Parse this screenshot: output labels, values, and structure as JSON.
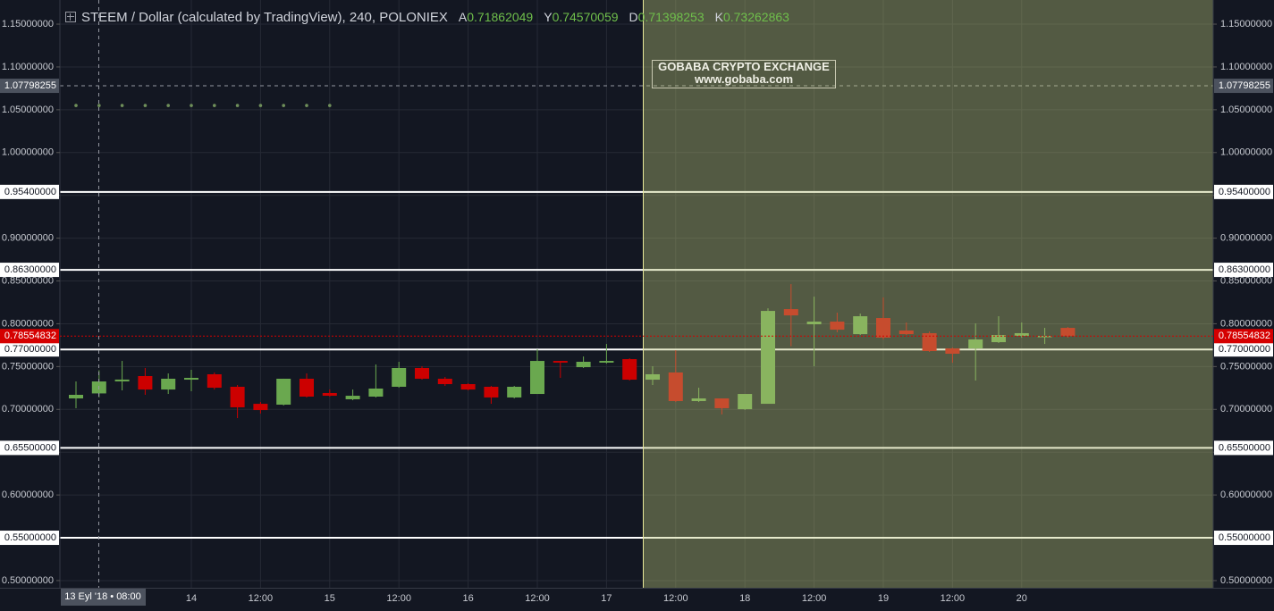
{
  "chart_data": {
    "type": "candlestick",
    "title": "STEEM / Dollar (calculated by TradingView), 240, POLONIEX",
    "ohlc_labels": [
      "A",
      "Y",
      "D",
      "K"
    ],
    "categories": [
      null,
      null,
      null,
      null,
      null,
      "14",
      null,
      null,
      "12:00",
      null,
      null,
      "15",
      null,
      null,
      "12:00",
      null,
      null,
      "16",
      null,
      null,
      "12:00",
      null,
      null,
      "17",
      null,
      null,
      "12:00",
      null,
      null,
      "18",
      null,
      null,
      "12:00",
      null,
      null,
      "19",
      null,
      null,
      "12:00",
      null,
      null,
      "20",
      null,
      null
    ],
    "open": [
      0.7128,
      0.71862049,
      0.7327,
      0.7389,
      0.7232,
      0.7347,
      0.741,
      0.7264,
      0.7065,
      0.7055,
      0.7358,
      0.7191,
      0.7118,
      0.7149,
      0.7264,
      0.7483,
      0.7358,
      0.7295,
      0.7264,
      0.7139,
      0.718,
      0.7566,
      0.7493,
      0.7546,
      0.7587,
      0.7347,
      0.7431,
      0.7097,
      0.7128,
      0.7002,
      0.7065,
      0.8171,
      0.7994,
      0.8025,
      0.7879,
      0.8067,
      0.7921,
      0.789,
      0.7712,
      0.7712,
      0.7785,
      0.7858,
      0.7848,
      0.7952
    ],
    "high": [
      0.7326,
      0.74570059,
      0.7566,
      0.7483,
      0.742,
      0.7462,
      0.7431,
      0.7285,
      0.7086,
      0.7358,
      0.742,
      0.7232,
      0.7232,
      0.7525,
      0.7556,
      0.7504,
      0.7379,
      0.7305,
      0.7274,
      0.7274,
      0.7702,
      0.7566,
      0.7618,
      0.7764,
      0.7597,
      0.7504,
      0.7691,
      0.7253,
      0.7128,
      0.718,
      0.8181,
      0.8463,
      0.8317,
      0.8129,
      0.8119,
      0.8307,
      0.8015,
      0.791,
      0.7723,
      0.8004,
      0.8088,
      0.8015,
      0.7952,
      0.7962
    ],
    "low": [
      0.7013,
      0.71398253,
      0.7222,
      0.717,
      0.718,
      0.7212,
      0.7232,
      0.6898,
      0.6951,
      0.7045,
      0.7139,
      0.7149,
      0.7107,
      0.7139,
      0.7253,
      0.7347,
      0.7274,
      0.7222,
      0.7065,
      0.7128,
      0.718,
      0.7368,
      0.7483,
      0.7535,
      0.7337,
      0.7285,
      0.7086,
      0.7086,
      0.6941,
      0.6993,
      0.7065,
      0.7738,
      0.7504,
      0.79,
      0.7869,
      0.7817,
      0.7869,
      0.7671,
      0.7545,
      0.7337,
      0.7775,
      0.7837,
      0.7764,
      0.7837
    ],
    "close": [
      0.717,
      0.73262863,
      0.7348,
      0.7232,
      0.7358,
      0.7368,
      0.7253,
      0.7024,
      0.6992,
      0.7358,
      0.7149,
      0.7159,
      0.7159,
      0.7243,
      0.7483,
      0.7358,
      0.7295,
      0.7232,
      0.7139,
      0.7264,
      0.7566,
      0.7546,
      0.7556,
      0.7566,
      0.7347,
      0.741,
      0.7097,
      0.7128,
      0.7014,
      0.718,
      0.815,
      0.8098,
      0.8025,
      0.7931,
      0.8088,
      0.7838,
      0.7879,
      0.7681,
      0.765,
      0.7817,
      0.7869,
      0.789,
      0.7858,
      0.78554832
    ],
    "up_color": "#6aa84f",
    "down_color": "#cc0000",
    "dots": {
      "color": "#6f8f5a",
      "values": [
        1.055,
        1.055,
        1.055,
        1.055,
        1.055,
        1.055,
        1.055,
        1.055,
        1.055,
        1.055,
        1.055,
        1.055,
        null,
        null,
        null,
        null,
        null,
        null,
        null,
        null,
        null,
        null,
        null,
        null,
        null,
        null,
        null,
        null,
        null,
        null,
        null,
        null,
        null,
        null,
        null,
        null,
        null,
        null,
        null,
        null,
        null,
        null,
        null,
        null
      ]
    },
    "ylim": [
      0.4916,
      1.1782
    ],
    "yticks": [
      {
        "value": 0.5,
        "label": "0.50000000"
      },
      {
        "value": 0.55,
        "label": "0.55000000"
      },
      {
        "value": 0.6,
        "label": "0.60000000"
      },
      {
        "value": 0.65,
        "label": "0.65000000"
      },
      {
        "value": 0.7,
        "label": "0.70000000"
      },
      {
        "value": 0.75,
        "label": "0.75000000"
      },
      {
        "value": 0.8,
        "label": "0.80000000"
      },
      {
        "value": 0.85,
        "label": "0.85000000"
      },
      {
        "value": 0.9,
        "label": "0.90000000"
      },
      {
        "value": 0.95,
        "label": "0.95000000"
      },
      {
        "value": 1.0,
        "label": "1.00000000"
      },
      {
        "value": 1.05,
        "label": "1.05000000"
      },
      {
        "value": 1.1,
        "label": "1.10000000"
      },
      {
        "value": 1.15,
        "label": "1.15000000"
      }
    ],
    "levels": [
      {
        "value": 0.954,
        "label": "0.95400000"
      },
      {
        "value": 0.863,
        "label": "0.86300000"
      },
      {
        "value": 0.77,
        "label": "0.77000000"
      },
      {
        "value": 0.655,
        "label": "0.65500000"
      },
      {
        "value": 0.55,
        "label": "0.55000000"
      }
    ],
    "price_line": {
      "value": 0.78554832,
      "color": "#d50000"
    },
    "crosshair": {
      "price": 1.07798255,
      "x_label": "13 Eyl '18 • 08:00"
    },
    "annotations": [
      "GOBABA CRYPTO EXCHANGE",
      "www.gobaba.com"
    ],
    "grid": true
  }
}
